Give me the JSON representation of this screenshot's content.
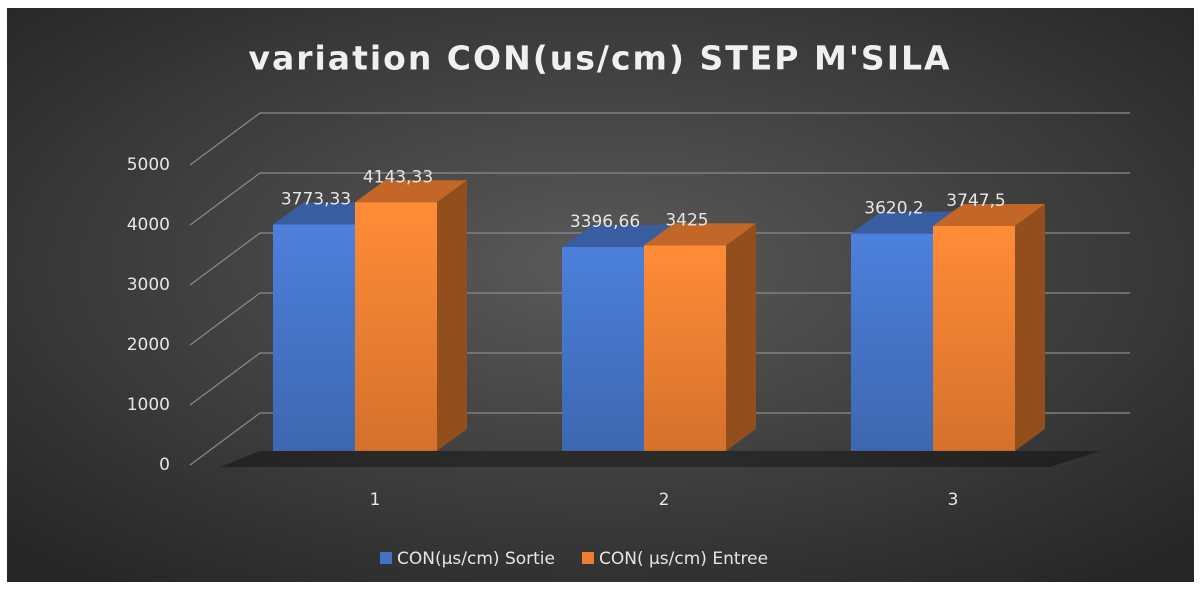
{
  "chart_data": {
    "type": "bar3d",
    "title": "variation CON(us/cm) STEP M'SILA",
    "categories": [
      "1",
      "2",
      "3"
    ],
    "series": [
      {
        "name": "CON(µs/cm) Sortie",
        "color": "#4472c4",
        "values": [
          3773.33,
          3396.66,
          3620.2
        ],
        "value_labels": [
          "3773,33",
          "3396,66",
          "3620,2"
        ]
      },
      {
        "name": "CON( µs/cm) Entree",
        "color": "#ed7d31",
        "values": [
          4143.33,
          3425,
          3747.5
        ],
        "value_labels": [
          "4143,33",
          "3425",
          "3747,5"
        ]
      }
    ],
    "ylim": [
      0,
      5000
    ],
    "yticks": [
      0,
      1000,
      2000,
      3000,
      4000,
      5000
    ],
    "grid": true,
    "legend": "bottom"
  }
}
